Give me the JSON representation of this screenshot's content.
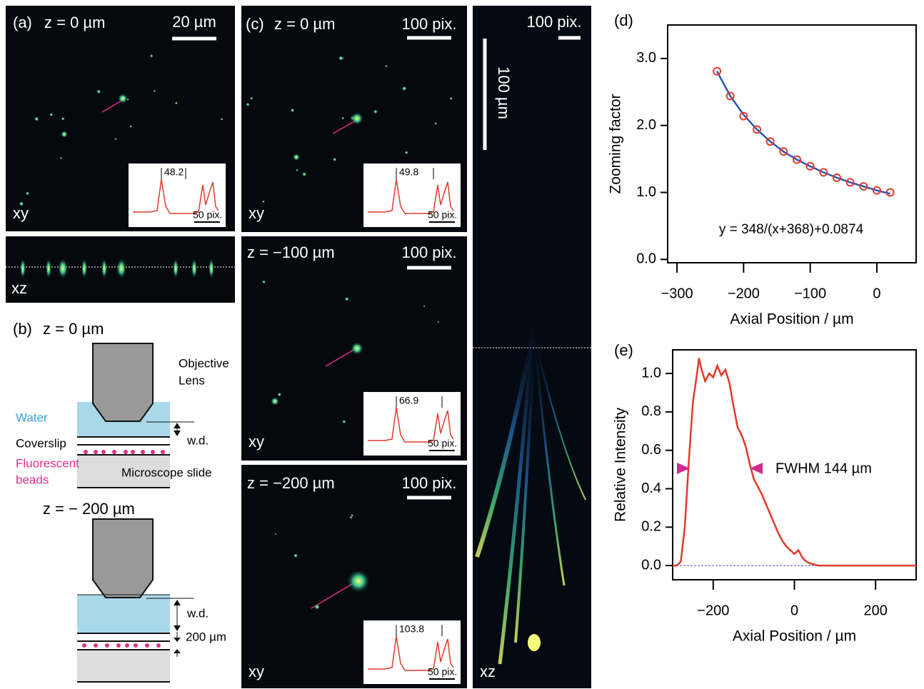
{
  "panel_a": {
    "label": "(a)",
    "z": "z = 0 µm",
    "scale": "20 µm",
    "xy": "xy",
    "inset_value": "48.2",
    "inset_scale": "50 pix.",
    "xz": "xz"
  },
  "panel_b": {
    "label": "(b)",
    "z_top": "z = 0 µm",
    "objective": [
      "Objective",
      "Lens"
    ],
    "water": "Water",
    "coverslip": "Coverslip",
    "beads": [
      "Fluorescent",
      "beads"
    ],
    "slide": "Microscope slide",
    "wd_top": "w.d.",
    "z_bottom": "z = − 200 µm",
    "wd_bottom": "w.d.",
    "depth": "200 µm"
  },
  "panel_c": {
    "label": "(c)",
    "images": [
      {
        "z": "z = 0 µm",
        "scale": "100 pix.",
        "xy": "xy",
        "inset_value": "49.8",
        "inset_scale": "50 pix."
      },
      {
        "z": "z = −100 µm",
        "scale": "100 pix.",
        "xy": "xy",
        "inset_value": "66.9",
        "inset_scale": "50 pix."
      },
      {
        "z": "z = −200 µm",
        "scale": "100 pix.",
        "xy": "xy",
        "inset_value": "103.8",
        "inset_scale": "50 pix."
      }
    ],
    "xz_scale": "100 pix.",
    "xz_length": "100 µm",
    "xz": "xz"
  },
  "chart_data": [
    {
      "type": "scatter",
      "panel_label": "(d)",
      "xlabel": "Axial Position / µm",
      "ylabel": "Zooming factor",
      "annotation": "y = 348/(x+368)+0.0874",
      "x": [
        -240,
        -220,
        -200,
        -180,
        -160,
        -140,
        -120,
        -100,
        -80,
        -60,
        -40,
        -20,
        0,
        20
      ],
      "series": [
        {
          "color": "#e03a2c",
          "marker": "circle",
          "values": [
            2.81,
            2.44,
            2.14,
            1.94,
            1.76,
            1.61,
            1.49,
            1.39,
            1.3,
            1.22,
            1.15,
            1.09,
            1.03,
            1.0
          ]
        },
        {
          "color": "#2c56b0",
          "marker": "line",
          "values": [
            2.81,
            2.44,
            2.16,
            1.94,
            1.76,
            1.61,
            1.49,
            1.39,
            1.3,
            1.22,
            1.15,
            1.09,
            1.03,
            0.98
          ]
        }
      ],
      "xlim": [
        -314,
        59
      ],
      "ylim": [
        -0.05,
        3.5
      ],
      "xticks": [
        {
          "value": -300,
          "label": "−300"
        },
        {
          "value": -200,
          "label": "−200"
        },
        {
          "value": -100,
          "label": "−100"
        },
        0
      ],
      "yticks": [
        {
          "value": 0,
          "label": "0.0"
        },
        {
          "value": 1,
          "label": "1.0"
        },
        {
          "value": 2,
          "label": "2.0"
        },
        {
          "value": 3,
          "label": "3.0"
        }
      ]
    },
    {
      "type": "line",
      "panel_label": "(e)",
      "xlabel": "Axial Position / µm",
      "ylabel": "Relative Intensity",
      "annotation": "FWHM 144 µm",
      "hline": 0,
      "hline_color": "#4a4ab0",
      "x": [
        -300,
        -290,
        -280,
        -270,
        -260,
        -250,
        -240,
        -235,
        -230,
        -220,
        -210,
        -200,
        -190,
        -180,
        -170,
        -160,
        -150,
        -140,
        -130,
        -120,
        -110,
        -100,
        -90,
        -80,
        -70,
        -60,
        -50,
        -40,
        -30,
        -20,
        -10,
        0,
        10,
        20,
        30,
        40,
        50,
        60,
        80,
        100,
        120,
        140,
        160,
        180,
        200,
        220,
        240,
        260,
        280,
        300
      ],
      "series": [
        {
          "color": "#e03a2c",
          "values": [
            0,
            0,
            0.02,
            0.2,
            0.55,
            0.85,
            1.0,
            1.08,
            1.03,
            0.96,
            1.0,
            0.98,
            1.04,
            0.99,
            1.02,
            0.95,
            0.83,
            0.72,
            0.68,
            0.62,
            0.53,
            0.45,
            0.41,
            0.37,
            0.32,
            0.27,
            0.22,
            0.17,
            0.13,
            0.1,
            0.08,
            0.06,
            0.08,
            0.04,
            0.02,
            0.01,
            0.005,
            0,
            0,
            0,
            0,
            0,
            0,
            0,
            0,
            0,
            0,
            0,
            0,
            0
          ]
        }
      ],
      "xlim": [
        -300,
        300
      ],
      "ylim": [
        -0.074,
        1.123
      ],
      "xticks": [
        {
          "value": -200,
          "label": "−200"
        },
        0,
        200
      ],
      "yticks": [
        {
          "value": 0,
          "label": "0.0"
        },
        {
          "value": 0.2,
          "label": "0.2"
        },
        {
          "value": 0.4,
          "label": "0.4"
        },
        {
          "value": 0.6,
          "label": "0.6"
        },
        {
          "value": 0.8,
          "label": "0.8"
        },
        {
          "value": 1,
          "label": "1.0"
        }
      ]
    }
  ]
}
